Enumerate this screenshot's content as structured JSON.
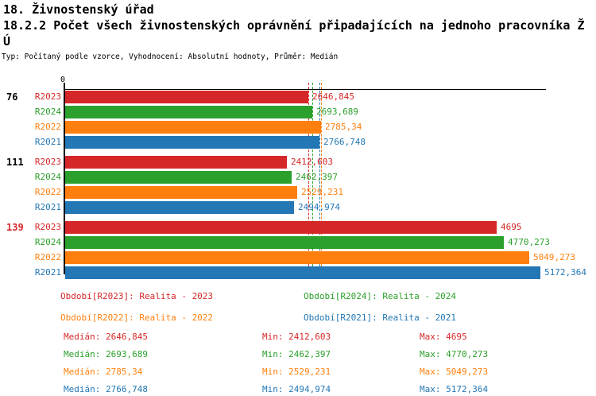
{
  "header": {
    "line1": "18. Živnostenský úřad",
    "line2": "18.2.2 Počet všech živnostenských oprávnění připadajících na jednoho pracovníka Ž",
    "line3": "Ú",
    "meta": "Typ: Počítaný podle vzorce, Vyhodnocení: Absolutní hodnoty, Průměr: Medián"
  },
  "colors": {
    "R2023": "#d62728",
    "R2024": "#2ca02c",
    "R2022": "#ff7f0e",
    "R2021": "#2377b4",
    "axis": "#000000"
  },
  "chart_data": {
    "type": "bar",
    "orientation": "horizontal",
    "title": "18.2.2 Počet všech živnostenských oprávnění připadajících na jednoho pracovníka ŽÚ",
    "xlabel": "",
    "ylabel": "",
    "xlim": [
      0,
      5600
    ],
    "axis_zero_label": "0",
    "grid": false,
    "legend_position": "bottom",
    "series_keys": [
      "R2023",
      "R2024",
      "R2022",
      "R2021"
    ],
    "groups": [
      {
        "label": "76",
        "label_color": "#000000",
        "bars": [
          {
            "series": "R2023",
            "value": 2646.845,
            "display": "2646,845"
          },
          {
            "series": "R2024",
            "value": 2693.689,
            "display": "2693,689"
          },
          {
            "series": "R2022",
            "value": 2785.34,
            "display": "2785,34"
          },
          {
            "series": "R2021",
            "value": 2766.748,
            "display": "2766,748"
          }
        ]
      },
      {
        "label": "111",
        "label_color": "#000000",
        "bars": [
          {
            "series": "R2023",
            "value": 2412.603,
            "display": "2412,603"
          },
          {
            "series": "R2024",
            "value": 2462.397,
            "display": "2462,397"
          },
          {
            "series": "R2022",
            "value": 2529.231,
            "display": "2529,231"
          },
          {
            "series": "R2021",
            "value": 2494.974,
            "display": "2494,974"
          }
        ]
      },
      {
        "label": "139",
        "label_color": "#d62728",
        "bars": [
          {
            "series": "R2023",
            "value": 4695,
            "display": "4695"
          },
          {
            "series": "R2024",
            "value": 4770.273,
            "display": "4770,273"
          },
          {
            "series": "R2022",
            "value": 5049.273,
            "display": "5049,273"
          },
          {
            "series": "R2021",
            "value": 5172.364,
            "display": "5172,364"
          }
        ]
      }
    ],
    "median_lines": [
      {
        "series": "R2023",
        "value": 2646.845
      },
      {
        "series": "R2024",
        "value": 2693.689
      },
      {
        "series": "R2021",
        "value": 2766.748
      },
      {
        "series": "R2022",
        "value": 2785.34
      }
    ]
  },
  "legend": {
    "items": [
      {
        "series": "R2023",
        "label": "Období[R2023]: Realita - 2023",
        "col": 0,
        "row": 0
      },
      {
        "series": "R2024",
        "label": "Období[R2024]: Realita - 2024",
        "col": 1,
        "row": 0
      },
      {
        "series": "R2022",
        "label": "Období[R2022]: Realita - 2022",
        "col": 0,
        "row": 1
      },
      {
        "series": "R2021",
        "label": "Období[R2021]: Realita - 2021",
        "col": 1,
        "row": 1
      }
    ]
  },
  "stats": {
    "labels": {
      "median": "Medián",
      "min": "Min",
      "max": "Max"
    },
    "rows": [
      {
        "series": "R2023",
        "median": "2646,845",
        "min": "2412,603",
        "max": "4695"
      },
      {
        "series": "R2024",
        "median": "2693,689",
        "min": "2462,397",
        "max": "4770,273"
      },
      {
        "series": "R2022",
        "median": "2785,34",
        "min": "2529,231",
        "max": "5049,273"
      },
      {
        "series": "R2021",
        "median": "2766,748",
        "min": "2494,974",
        "max": "5172,364"
      }
    ]
  }
}
